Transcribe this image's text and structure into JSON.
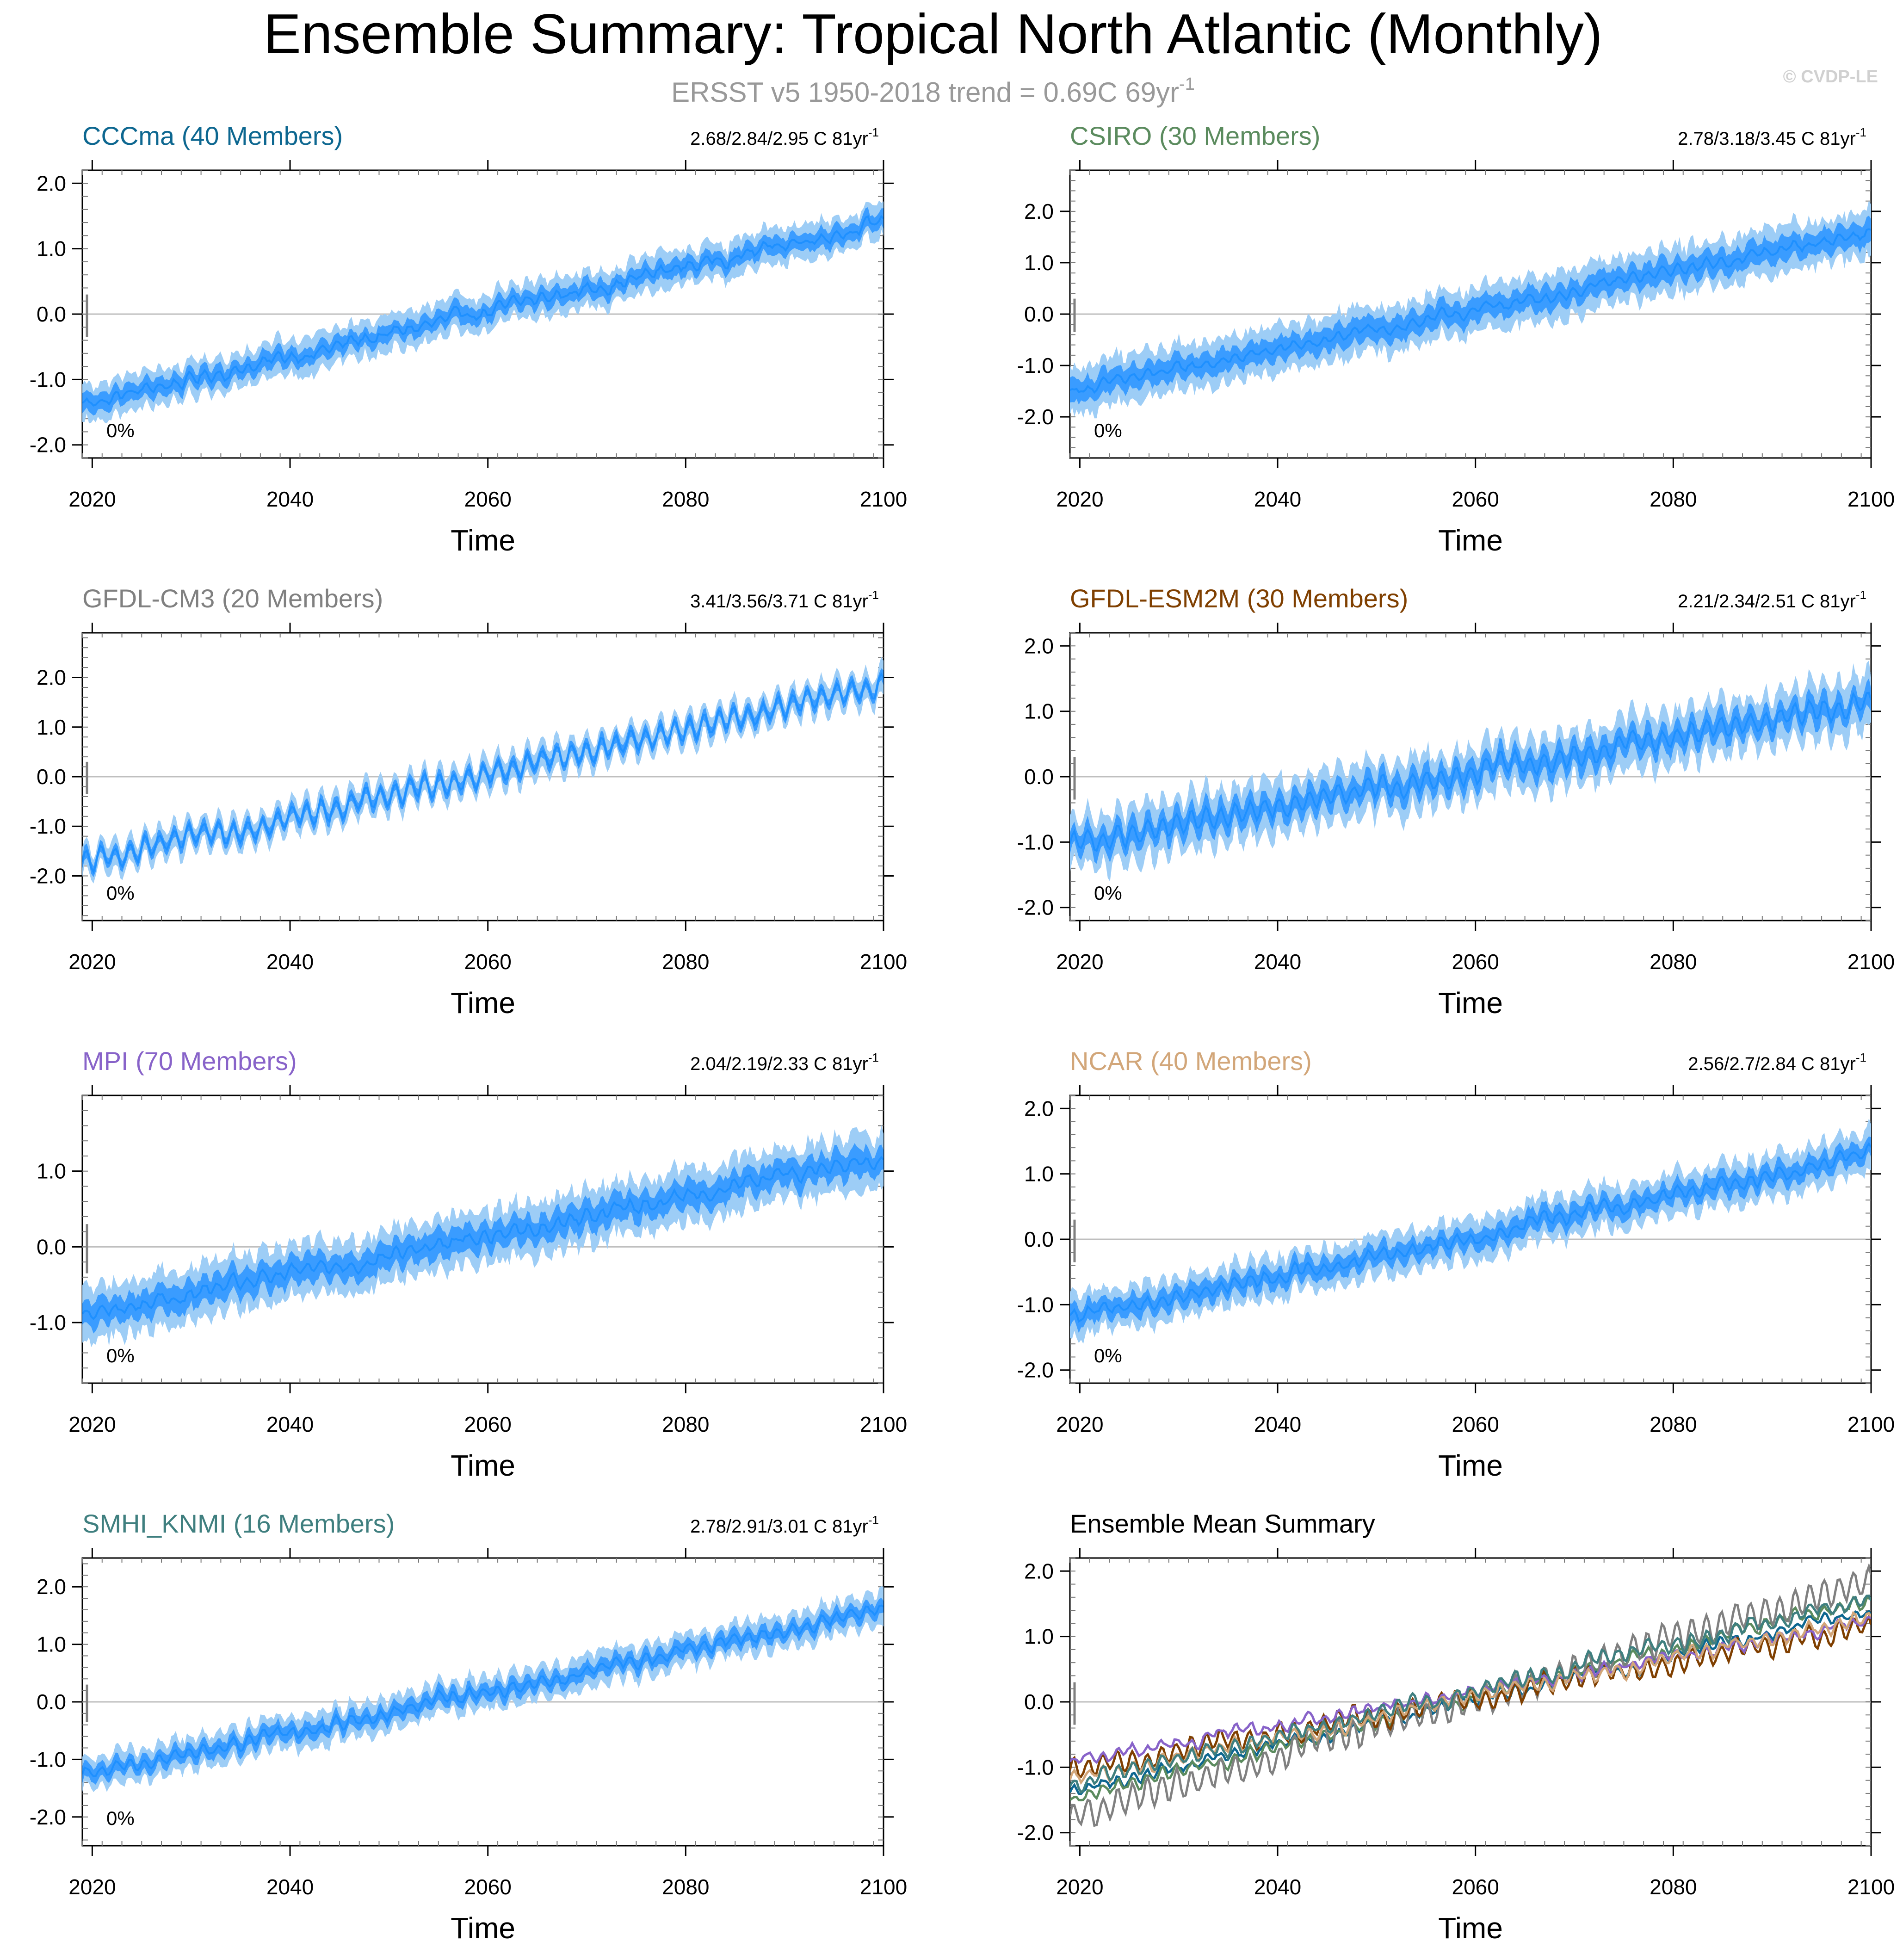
{
  "page": {
    "title": "Ensemble Summary: Tropical North Atlantic (Monthly)",
    "subtitle_prefix": "ERSST v5 1950-2018 trend = 0.69C 69yr",
    "subtitle_sup": "-1",
    "watermark": "© CVDP-LE",
    "xlabel": "Time",
    "percent_label": "0%",
    "unit_label": "C 81yr",
    "unit_sup": "-1"
  },
  "colors": {
    "mean_line": "#1e90ff",
    "inner_band": "#3a9cff",
    "outer_band": "#9dcdf6",
    "obs": "#7f7f7f",
    "zero_line": "#bfbfbf"
  },
  "chart_data": [
    {
      "type": "area",
      "title": "CCCma (40 Members)",
      "title_color": "#0d6790",
      "trend": "2.68/2.84/2.95",
      "x": [
        2019,
        2100
      ],
      "xticks": [
        2020,
        2040,
        2060,
        2080,
        2100
      ],
      "ylim": [
        -2.2,
        2.2
      ],
      "yticks": [
        -2.0,
        -1.0,
        0.0,
        1.0,
        2.0
      ],
      "start": -1.38,
      "end": 1.42,
      "inner_halfwidth": 0.13,
      "outer_halfwidth": 0.27,
      "seasonal_amplitude": 0.06
    },
    {
      "type": "area",
      "title": "CSIRO (30 Members)",
      "title_color": "#5b8b5e",
      "trend": "2.78/3.18/3.45",
      "x": [
        2019,
        2100
      ],
      "xticks": [
        2020,
        2040,
        2060,
        2080,
        2100
      ],
      "ylim": [
        -2.8,
        2.8
      ],
      "yticks": [
        -2.0,
        -1.0,
        0.0,
        1.0,
        2.0
      ],
      "start": -1.5,
      "end": 1.6,
      "inner_halfwidth": 0.22,
      "outer_halfwidth": 0.45,
      "seasonal_amplitude": 0.07
    },
    {
      "type": "area",
      "title": "GFDL-CM3 (20 Members)",
      "title_color": "#808080",
      "trend": "3.41/3.56/3.71",
      "x": [
        2019,
        2100
      ],
      "xticks": [
        2020,
        2040,
        2060,
        2080,
        2100
      ],
      "ylim": [
        -2.9,
        2.9
      ],
      "yticks": [
        -2.0,
        -1.0,
        0.0,
        1.0,
        2.0
      ],
      "start": -1.75,
      "end": 1.85,
      "inner_halfwidth": 0.12,
      "outer_halfwidth": 0.28,
      "seasonal_amplitude": 0.2
    },
    {
      "type": "area",
      "title": "GFDL-ESM2M (30 Members)",
      "title_color": "#7f3f00",
      "trend": "2.21/2.34/2.51",
      "x": [
        2019,
        2100
      ],
      "xticks": [
        2020,
        2040,
        2060,
        2080,
        2100
      ],
      "ylim": [
        -2.2,
        2.2
      ],
      "yticks": [
        -2.0,
        -1.0,
        0.0,
        1.0,
        2.0
      ],
      "start": -1.05,
      "end": 1.15,
      "inner_halfwidth": 0.18,
      "outer_halfwidth": 0.4,
      "seasonal_amplitude": 0.14
    },
    {
      "type": "area",
      "title": "MPI (70 Members)",
      "title_color": "#8863c9",
      "trend": "2.04/2.19/2.33",
      "x": [
        2019,
        2100
      ],
      "xticks": [
        2020,
        2040,
        2060,
        2080,
        2100
      ],
      "ylim": [
        -1.8,
        2.0
      ],
      "yticks": [
        -1.0,
        0.0,
        1.0
      ],
      "start": -0.92,
      "end": 1.2,
      "inner_halfwidth": 0.17,
      "outer_halfwidth": 0.35,
      "seasonal_amplitude": 0.06
    },
    {
      "type": "area",
      "title": "NCAR (40 Members)",
      "title_color": "#d2a679",
      "trend": "2.56/2.7/2.84",
      "x": [
        2019,
        2100
      ],
      "xticks": [
        2020,
        2040,
        2060,
        2080,
        2100
      ],
      "ylim": [
        -2.2,
        2.2
      ],
      "yticks": [
        -2.0,
        -1.0,
        0.0,
        1.0,
        2.0
      ],
      "start": -1.2,
      "end": 1.3,
      "inner_halfwidth": 0.15,
      "outer_halfwidth": 0.32,
      "seasonal_amplitude": 0.08
    },
    {
      "type": "area",
      "title": "SMHI_KNMI (16 Members)",
      "title_color": "#3f7f7f",
      "trend": "2.78/2.91/3.01",
      "x": [
        2019,
        2100
      ],
      "xticks": [
        2020,
        2040,
        2060,
        2080,
        2100
      ],
      "ylim": [
        -2.5,
        2.5
      ],
      "yticks": [
        -2.0,
        -1.0,
        0.0,
        1.0,
        2.0
      ],
      "start": -1.3,
      "end": 1.6,
      "inner_halfwidth": 0.13,
      "outer_halfwidth": 0.28,
      "seasonal_amplitude": 0.09
    },
    {
      "type": "line",
      "title": "Ensemble Mean Summary",
      "title_color": "#000000",
      "trend": "",
      "x": [
        2019,
        2100
      ],
      "xticks": [
        2020,
        2040,
        2060,
        2080,
        2100
      ],
      "ylim": [
        -2.2,
        2.2
      ],
      "yticks": [
        -2.0,
        -1.0,
        0.0,
        1.0,
        2.0
      ],
      "series": [
        {
          "name": "CCCma",
          "color": "#0d6790",
          "start": -1.38,
          "end": 1.42,
          "seasonal_amplitude": 0.06
        },
        {
          "name": "CSIRO",
          "color": "#5b8b5e",
          "start": -1.5,
          "end": 1.6,
          "seasonal_amplitude": 0.07
        },
        {
          "name": "GFDL-CM3",
          "color": "#808080",
          "start": -1.75,
          "end": 1.85,
          "seasonal_amplitude": 0.2
        },
        {
          "name": "GFDL-ESM2M",
          "color": "#7f3f00",
          "start": -1.05,
          "end": 1.15,
          "seasonal_amplitude": 0.14
        },
        {
          "name": "MPI",
          "color": "#8863c9",
          "start": -0.92,
          "end": 1.2,
          "seasonal_amplitude": 0.06
        },
        {
          "name": "NCAR",
          "color": "#d2a679",
          "start": -1.2,
          "end": 1.3,
          "seasonal_amplitude": 0.08
        },
        {
          "name": "SMHI_KNMI",
          "color": "#3f7f7f",
          "start": -1.3,
          "end": 1.6,
          "seasonal_amplitude": 0.09
        }
      ]
    }
  ]
}
